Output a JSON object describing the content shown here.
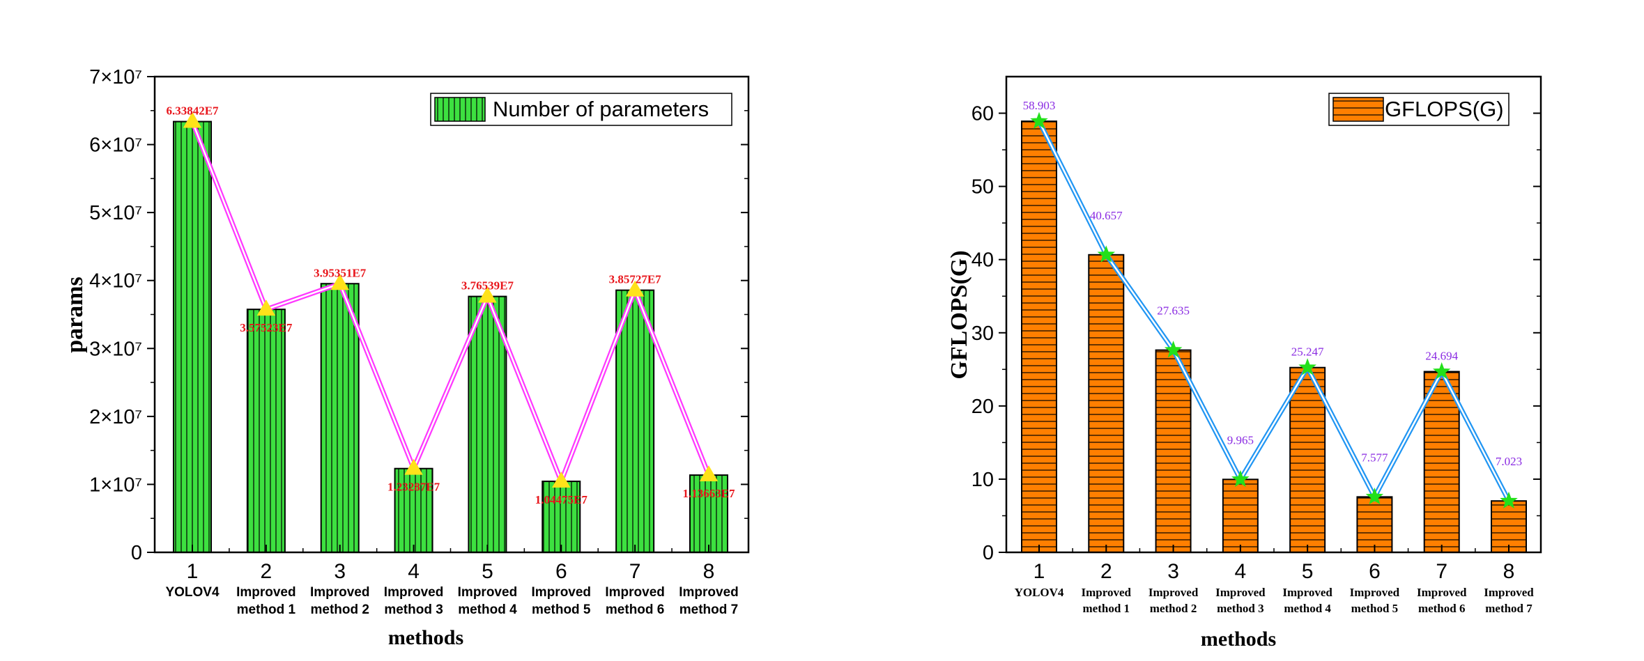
{
  "colors": {
    "background": "#ffffff",
    "left_bar_fill": "#3de040",
    "left_line": "#ff38ff",
    "left_marker": "#ffe21a",
    "left_label": "#e8151b",
    "right_bar_fill": "#ff7f00",
    "right_line": "#2196f3",
    "right_marker": "#23e01a",
    "right_label": "#8a2be2",
    "axis": "#000000"
  },
  "chart_data": [
    {
      "type": "bar",
      "ylabel": "params",
      "xlabel": "methods",
      "x_ticks": [
        "1",
        "2",
        "3",
        "4",
        "5",
        "6",
        "7",
        "8"
      ],
      "categories": [
        "YOLOV4",
        "Improved method 1",
        "Improved method 2",
        "Improved method 3",
        "Improved method 4",
        "Improved method 5",
        "Improved method 6",
        "Improved method 7"
      ],
      "y_ticks": [
        "0",
        "1×10⁷",
        "2×10⁷",
        "3×10⁷",
        "4×10⁷",
        "5×10⁷",
        "6×10⁷",
        "7×10⁷"
      ],
      "ylim": [
        0,
        70000000
      ],
      "legend": "Number of parameters",
      "legend_position": "top-right",
      "values": [
        63384200,
        35752300,
        39535100,
        12328700,
        37653900,
        10447500,
        38572700,
        11366300
      ],
      "data_labels": [
        "6.33842E7",
        "3.57523E7",
        "3.95351E7",
        "1.23287E7",
        "3.76539E7",
        "1.04475E7",
        "3.85727E7",
        "1.13663E7"
      ],
      "overlay_line": true,
      "bar_pattern": "vertical-lines",
      "grid": false
    },
    {
      "type": "bar",
      "ylabel": "GFLOPS(G)",
      "xlabel": "methods",
      "x_ticks": [
        "1",
        "2",
        "3",
        "4",
        "5",
        "6",
        "7",
        "8"
      ],
      "categories": [
        "YOLOV4",
        "Improved method 1",
        "Improved method 2",
        "Improved method 3",
        "Improved method 4",
        "Improved method 5",
        "Improved method 6",
        "Improved method 7"
      ],
      "y_ticks": [
        "0",
        "10",
        "20",
        "30",
        "40",
        "50",
        "60"
      ],
      "ylim": [
        0,
        65
      ],
      "legend": "GFLOPS(G)",
      "legend_position": "top-right",
      "values": [
        58.903,
        40.657,
        27.635,
        9.965,
        25.247,
        7.577,
        24.694,
        7.023
      ],
      "data_labels": [
        "58.903",
        "40.657",
        "27.635",
        "9.965",
        "25.247",
        "7.577",
        "24.694",
        "7.023"
      ],
      "overlay_line": true,
      "bar_pattern": "horizontal-lines",
      "grid": false
    }
  ]
}
